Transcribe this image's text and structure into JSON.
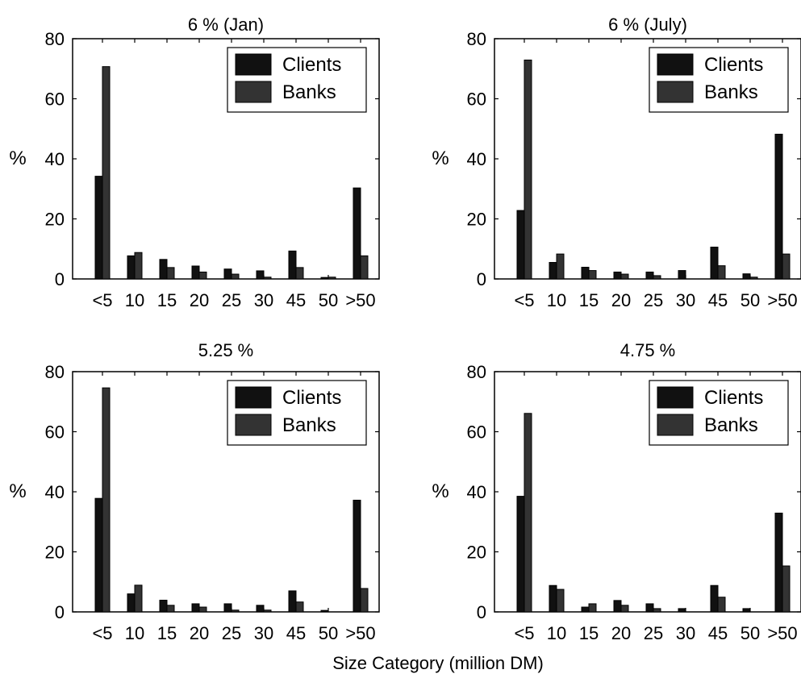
{
  "figure": {
    "xlabel": "Size Category (million DM)"
  },
  "chart_data": [
    {
      "type": "bar",
      "title": "6 % (Jan)",
      "ylabel": "%",
      "xlabel": "",
      "ylim": [
        0,
        80
      ],
      "yticks": [
        0,
        20,
        40,
        60,
        80
      ],
      "categories": [
        "<5",
        "10",
        "15",
        "20",
        "25",
        "30",
        "45",
        "50",
        ">50"
      ],
      "series": [
        {
          "name": "Clients",
          "values": [
            34.2,
            7.7,
            6.5,
            4.3,
            3.3,
            2.7,
            9.3,
            0.5,
            30.3
          ]
        },
        {
          "name": "Banks",
          "values": [
            70.7,
            8.8,
            3.8,
            2.3,
            1.6,
            0.6,
            3.8,
            0.6,
            7.7
          ]
        }
      ],
      "legend": "top-right",
      "colors": {
        "Clients": "#111111",
        "Banks": "#333333"
      }
    },
    {
      "type": "bar",
      "title": "6 % (July)",
      "ylabel": "%",
      "xlabel": "",
      "ylim": [
        0,
        80
      ],
      "yticks": [
        0,
        20,
        40,
        60,
        80
      ],
      "categories": [
        "<5",
        "10",
        "15",
        "20",
        "25",
        "30",
        "45",
        "50",
        ">50"
      ],
      "series": [
        {
          "name": "Clients",
          "values": [
            22.8,
            5.5,
            3.9,
            2.3,
            2.3,
            2.8,
            10.6,
            1.7,
            48.2
          ]
        },
        {
          "name": "Banks",
          "values": [
            72.9,
            8.3,
            2.8,
            1.6,
            1.1,
            0.0,
            4.4,
            0.6,
            8.3
          ]
        }
      ],
      "legend": "top-right",
      "colors": {
        "Clients": "#111111",
        "Banks": "#333333"
      }
    },
    {
      "type": "bar",
      "title": "5.25 %",
      "ylabel": "%",
      "xlabel": "",
      "ylim": [
        0,
        80
      ],
      "yticks": [
        0,
        20,
        40,
        60,
        80
      ],
      "categories": [
        "<5",
        "10",
        "15",
        "20",
        "25",
        "30",
        "45",
        "50",
        ">50"
      ],
      "series": [
        {
          "name": "Clients",
          "values": [
            37.8,
            6.0,
            3.9,
            2.7,
            2.7,
            2.2,
            7.0,
            0.5,
            37.2
          ]
        },
        {
          "name": "Banks",
          "values": [
            74.6,
            8.9,
            2.2,
            1.6,
            0.6,
            0.6,
            3.3,
            0.0,
            7.8
          ]
        }
      ],
      "legend": "top-right",
      "colors": {
        "Clients": "#111111",
        "Banks": "#333333"
      }
    },
    {
      "type": "bar",
      "title": "4.75 %",
      "ylabel": "%",
      "xlabel": "",
      "ylim": [
        0,
        80
      ],
      "yticks": [
        0,
        20,
        40,
        60,
        80
      ],
      "categories": [
        "<5",
        "10",
        "15",
        "20",
        "25",
        "30",
        "45",
        "50",
        ">50"
      ],
      "series": [
        {
          "name": "Clients",
          "values": [
            38.5,
            8.8,
            1.6,
            3.8,
            2.7,
            1.1,
            8.8,
            1.1,
            32.9
          ]
        },
        {
          "name": "Banks",
          "values": [
            66.1,
            7.5,
            2.7,
            2.2,
            1.1,
            0.0,
            4.9,
            0.0,
            15.3
          ]
        }
      ],
      "legend": "top-right",
      "colors": {
        "Clients": "#111111",
        "Banks": "#333333"
      }
    }
  ]
}
